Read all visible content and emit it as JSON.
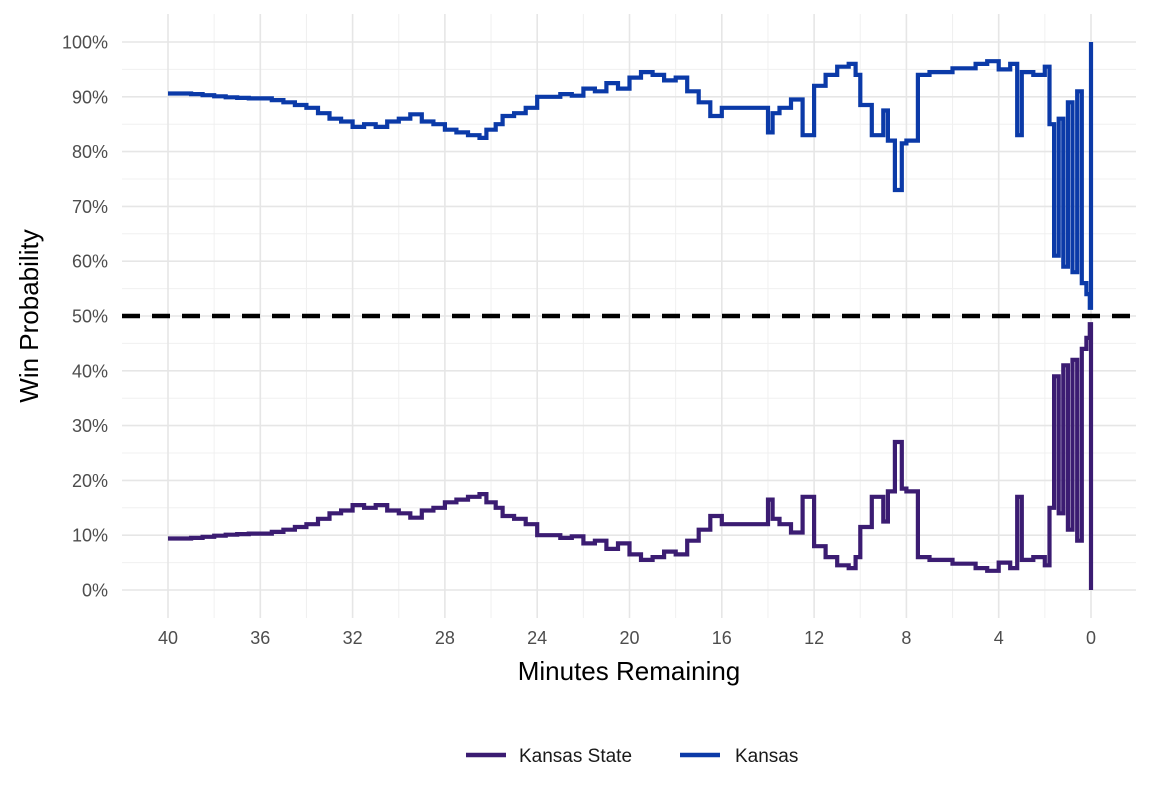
{
  "chart_data": {
    "type": "line",
    "title": "",
    "xlabel": "Minutes Remaining",
    "ylabel": "Win Probability",
    "xlim": [
      40,
      0
    ],
    "ylim": [
      0,
      1
    ],
    "x_ticks": [
      40,
      36,
      32,
      28,
      24,
      20,
      16,
      12,
      8,
      4,
      0
    ],
    "x_tick_labels": [
      "40",
      "36",
      "32",
      "28",
      "24",
      "20",
      "16",
      "12",
      "8",
      "4",
      "0"
    ],
    "y_ticks": [
      0,
      0.1,
      0.2,
      0.3,
      0.4,
      0.5,
      0.6,
      0.7,
      0.8,
      0.9,
      1.0
    ],
    "y_tick_labels": [
      "0%",
      "10%",
      "20%",
      "30%",
      "40%",
      "50%",
      "60%",
      "70%",
      "80%",
      "90%",
      "100%"
    ],
    "reference_line": {
      "y": 0.5,
      "style": "dashed",
      "color": "#000000"
    },
    "grid": true,
    "legend": {
      "position": "bottom"
    },
    "series": [
      {
        "name": "Kansas State",
        "color": "#3b1c72",
        "points": [
          [
            40,
            0.094
          ],
          [
            39,
            0.095
          ],
          [
            38.5,
            0.097
          ],
          [
            38,
            0.099
          ],
          [
            37.5,
            0.101
          ],
          [
            37,
            0.102
          ],
          [
            36.5,
            0.103
          ],
          [
            36,
            0.103
          ],
          [
            35.5,
            0.106
          ],
          [
            35,
            0.11
          ],
          [
            34.5,
            0.115
          ],
          [
            34,
            0.12
          ],
          [
            33.5,
            0.13
          ],
          [
            33,
            0.14
          ],
          [
            32.5,
            0.145
          ],
          [
            32,
            0.155
          ],
          [
            31.5,
            0.15
          ],
          [
            31,
            0.155
          ],
          [
            30.5,
            0.145
          ],
          [
            30,
            0.14
          ],
          [
            29.5,
            0.132
          ],
          [
            29,
            0.145
          ],
          [
            28.5,
            0.15
          ],
          [
            28,
            0.16
          ],
          [
            27.5,
            0.165
          ],
          [
            27,
            0.17
          ],
          [
            26.5,
            0.175
          ],
          [
            26.2,
            0.16
          ],
          [
            25.8,
            0.15
          ],
          [
            25.5,
            0.135
          ],
          [
            25,
            0.13
          ],
          [
            24.5,
            0.12
          ],
          [
            24,
            0.1
          ],
          [
            23.5,
            0.1
          ],
          [
            23,
            0.095
          ],
          [
            22.5,
            0.098
          ],
          [
            22,
            0.085
          ],
          [
            21.5,
            0.09
          ],
          [
            21,
            0.075
          ],
          [
            20.5,
            0.085
          ],
          [
            20,
            0.065
          ],
          [
            19.5,
            0.055
          ],
          [
            19,
            0.06
          ],
          [
            18.5,
            0.07
          ],
          [
            18,
            0.065
          ],
          [
            17.5,
            0.09
          ],
          [
            17,
            0.11
          ],
          [
            16.5,
            0.135
          ],
          [
            16,
            0.12
          ],
          [
            15,
            0.12
          ],
          [
            14.5,
            0.12
          ],
          [
            14,
            0.165
          ],
          [
            13.8,
            0.13
          ],
          [
            13.5,
            0.12
          ],
          [
            13,
            0.105
          ],
          [
            12.5,
            0.17
          ],
          [
            12,
            0.08
          ],
          [
            11.5,
            0.06
          ],
          [
            11,
            0.045
          ],
          [
            10.5,
            0.04
          ],
          [
            10.2,
            0.06
          ],
          [
            10,
            0.115
          ],
          [
            9.5,
            0.17
          ],
          [
            9,
            0.125
          ],
          [
            8.8,
            0.18
          ],
          [
            8.5,
            0.27
          ],
          [
            8.2,
            0.185
          ],
          [
            8,
            0.18
          ],
          [
            7.5,
            0.06
          ],
          [
            7,
            0.055
          ],
          [
            6,
            0.048
          ],
          [
            5,
            0.04
          ],
          [
            4.5,
            0.035
          ],
          [
            4,
            0.05
          ],
          [
            3.5,
            0.04
          ],
          [
            3.2,
            0.17
          ],
          [
            3,
            0.055
          ],
          [
            2.5,
            0.06
          ],
          [
            2,
            0.045
          ],
          [
            1.8,
            0.15
          ],
          [
            1.6,
            0.39
          ],
          [
            1.4,
            0.14
          ],
          [
            1.2,
            0.41
          ],
          [
            1,
            0.11
          ],
          [
            0.8,
            0.42
          ],
          [
            0.6,
            0.09
          ],
          [
            0.4,
            0.44
          ],
          [
            0.2,
            0.46
          ],
          [
            0.05,
            0.485
          ],
          [
            0,
            0.0
          ]
        ]
      },
      {
        "name": "Kansas",
        "color": "#0b3aa8",
        "points": [
          [
            40,
            0.906
          ],
          [
            39,
            0.905
          ],
          [
            38.5,
            0.903
          ],
          [
            38,
            0.901
          ],
          [
            37.5,
            0.899
          ],
          [
            37,
            0.898
          ],
          [
            36.5,
            0.897
          ],
          [
            36,
            0.897
          ],
          [
            35.5,
            0.894
          ],
          [
            35,
            0.89
          ],
          [
            34.5,
            0.885
          ],
          [
            34,
            0.88
          ],
          [
            33.5,
            0.87
          ],
          [
            33,
            0.86
          ],
          [
            32.5,
            0.855
          ],
          [
            32,
            0.845
          ],
          [
            31.5,
            0.85
          ],
          [
            31,
            0.845
          ],
          [
            30.5,
            0.855
          ],
          [
            30,
            0.86
          ],
          [
            29.5,
            0.868
          ],
          [
            29,
            0.855
          ],
          [
            28.5,
            0.85
          ],
          [
            28,
            0.84
          ],
          [
            27.5,
            0.835
          ],
          [
            27,
            0.83
          ],
          [
            26.5,
            0.825
          ],
          [
            26.2,
            0.84
          ],
          [
            25.8,
            0.85
          ],
          [
            25.5,
            0.865
          ],
          [
            25,
            0.87
          ],
          [
            24.5,
            0.88
          ],
          [
            24,
            0.9
          ],
          [
            23.5,
            0.9
          ],
          [
            23,
            0.905
          ],
          [
            22.5,
            0.902
          ],
          [
            22,
            0.915
          ],
          [
            21.5,
            0.91
          ],
          [
            21,
            0.925
          ],
          [
            20.5,
            0.915
          ],
          [
            20,
            0.935
          ],
          [
            19.5,
            0.945
          ],
          [
            19,
            0.94
          ],
          [
            18.5,
            0.93
          ],
          [
            18,
            0.935
          ],
          [
            17.5,
            0.91
          ],
          [
            17,
            0.89
          ],
          [
            16.5,
            0.865
          ],
          [
            16,
            0.88
          ],
          [
            15,
            0.88
          ],
          [
            14.5,
            0.88
          ],
          [
            14,
            0.835
          ],
          [
            13.8,
            0.87
          ],
          [
            13.5,
            0.88
          ],
          [
            13,
            0.895
          ],
          [
            12.5,
            0.83
          ],
          [
            12,
            0.92
          ],
          [
            11.5,
            0.94
          ],
          [
            11,
            0.955
          ],
          [
            10.5,
            0.96
          ],
          [
            10.2,
            0.94
          ],
          [
            10,
            0.885
          ],
          [
            9.5,
            0.83
          ],
          [
            9,
            0.875
          ],
          [
            8.8,
            0.82
          ],
          [
            8.5,
            0.73
          ],
          [
            8.2,
            0.815
          ],
          [
            8,
            0.82
          ],
          [
            7.5,
            0.94
          ],
          [
            7,
            0.945
          ],
          [
            6,
            0.952
          ],
          [
            5,
            0.96
          ],
          [
            4.5,
            0.965
          ],
          [
            4,
            0.95
          ],
          [
            3.5,
            0.96
          ],
          [
            3.2,
            0.83
          ],
          [
            3,
            0.945
          ],
          [
            2.5,
            0.94
          ],
          [
            2,
            0.955
          ],
          [
            1.8,
            0.85
          ],
          [
            1.6,
            0.61
          ],
          [
            1.4,
            0.86
          ],
          [
            1.2,
            0.59
          ],
          [
            1,
            0.89
          ],
          [
            0.8,
            0.58
          ],
          [
            0.6,
            0.91
          ],
          [
            0.4,
            0.56
          ],
          [
            0.2,
            0.54
          ],
          [
            0.05,
            0.515
          ],
          [
            0,
            1.0
          ]
        ]
      }
    ]
  }
}
